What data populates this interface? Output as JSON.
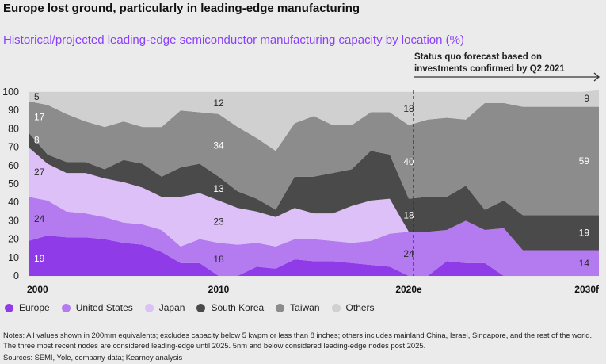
{
  "title": "Europe lost ground, particularly in leading-edge manufacturing",
  "subtitle": "Historical/projected leading-edge semiconductor manufacturing capacity by location (%)",
  "forecast_note_line1": "Status quo forecast based on",
  "forecast_note_line2": "investments confirmed by Q2 2021",
  "notes": "Notes: All values shown in 200mm equivalents; excludes capacity below 5 kwpm or less than 8 inches; others includes mainland China, Israel, Singapore, and the rest of the world. The three most recent nodes are considered leading-edge until 2025. 5nm and below considered leading-edge nodes post 2025.",
  "sources": "Sources: SEMI, Yole, company data; Kearney analysis",
  "colors": {
    "Europe": "#8f3ce8",
    "United States": "#b47af0",
    "Japan": "#dcc0f7",
    "South Korea": "#4a4a4a",
    "Taiwan": "#8c8c8c",
    "Others": "#d0d0d0"
  },
  "chart_data": {
    "type": "area",
    "stacked": true,
    "ylim": [
      0,
      100
    ],
    "yticks": [
      0,
      10,
      20,
      30,
      40,
      50,
      60,
      70,
      80,
      90,
      100
    ],
    "x_tick_labels": [
      {
        "x": 0,
        "label": "2000"
      },
      {
        "x": 10,
        "label": "2010"
      },
      {
        "x": 20,
        "label": "2020e"
      },
      {
        "x": 30,
        "label": "2030f"
      }
    ],
    "forecast_start_x": 20,
    "x": [
      0,
      1,
      2,
      3,
      4,
      5,
      6,
      7,
      8,
      9,
      10,
      11,
      12,
      13,
      14,
      15,
      16,
      17,
      18,
      19,
      20,
      21,
      22,
      23,
      24,
      25,
      26,
      27,
      28,
      29,
      30
    ],
    "series": [
      {
        "name": "Europe",
        "values": [
          19,
          22,
          21,
          21,
          20,
          18,
          17,
          13,
          7,
          7,
          0,
          0,
          5,
          4,
          9,
          8,
          8,
          7,
          6,
          5,
          0,
          0,
          8,
          7,
          7,
          0,
          0,
          0,
          0,
          0,
          0
        ]
      },
      {
        "name": "United States",
        "values": [
          24,
          19,
          14,
          13,
          12,
          11,
          11,
          12,
          9,
          13,
          18,
          17,
          13,
          12,
          11,
          12,
          11,
          11,
          13,
          18,
          24,
          24,
          17,
          23,
          18,
          26,
          14,
          14,
          14,
          14,
          14
        ]
      },
      {
        "name": "Japan",
        "values": [
          27,
          20,
          21,
          22,
          21,
          22,
          20,
          18,
          27,
          25,
          23,
          20,
          17,
          16,
          17,
          14,
          15,
          20,
          22,
          19,
          0,
          0,
          0,
          0,
          0,
          0,
          0,
          0,
          0,
          0,
          0
        ]
      },
      {
        "name": "South Korea",
        "values": [
          8,
          5,
          6,
          6,
          5,
          12,
          13,
          11,
          16,
          16,
          13,
          9,
          7,
          4,
          17,
          20,
          22,
          20,
          27,
          24,
          18,
          19,
          18,
          19,
          11,
          15,
          19,
          19,
          19,
          19,
          19
        ]
      },
      {
        "name": "Taiwan",
        "values": [
          17,
          27,
          26,
          22,
          23,
          21,
          20,
          27,
          31,
          28,
          34,
          35,
          33,
          32,
          29,
          33,
          26,
          24,
          21,
          23,
          40,
          42,
          43,
          36,
          58,
          53,
          59,
          59,
          59,
          59,
          59
        ]
      },
      {
        "name": "Others",
        "values": [
          5,
          7,
          12,
          16,
          19,
          16,
          19,
          19,
          10,
          11,
          12,
          19,
          25,
          32,
          17,
          13,
          18,
          18,
          11,
          11,
          18,
          15,
          14,
          15,
          6,
          6,
          8,
          8,
          8,
          8,
          9
        ]
      }
    ],
    "data_labels": [
      {
        "series": "Europe",
        "x": 0,
        "text": "19"
      },
      {
        "series": "United States",
        "x": 0,
        "text": "24"
      },
      {
        "series": "Japan",
        "x": 0,
        "text": "27"
      },
      {
        "series": "South Korea",
        "x": 0,
        "text": "8"
      },
      {
        "series": "Taiwan",
        "x": 0,
        "text": "17"
      },
      {
        "series": "Others",
        "x": 0,
        "text": "5"
      },
      {
        "series": "United States",
        "x": 10,
        "text": "18"
      },
      {
        "series": "Japan",
        "x": 10,
        "text": "23"
      },
      {
        "series": "South Korea",
        "x": 10,
        "text": "13"
      },
      {
        "series": "Taiwan",
        "x": 10,
        "text": "34"
      },
      {
        "series": "Others",
        "x": 10,
        "text": "12"
      },
      {
        "series": "United States",
        "x": 20,
        "text": "24"
      },
      {
        "series": "South Korea",
        "x": 20,
        "text": "18"
      },
      {
        "series": "Taiwan",
        "x": 20,
        "text": "40"
      },
      {
        "series": "Others",
        "x": 20,
        "text": "18"
      },
      {
        "series": "United States",
        "x": 30,
        "text": "14"
      },
      {
        "series": "South Korea",
        "x": 30,
        "text": "19"
      },
      {
        "series": "Taiwan",
        "x": 30,
        "text": "59"
      },
      {
        "series": "Others",
        "x": 30,
        "text": "9"
      }
    ]
  }
}
